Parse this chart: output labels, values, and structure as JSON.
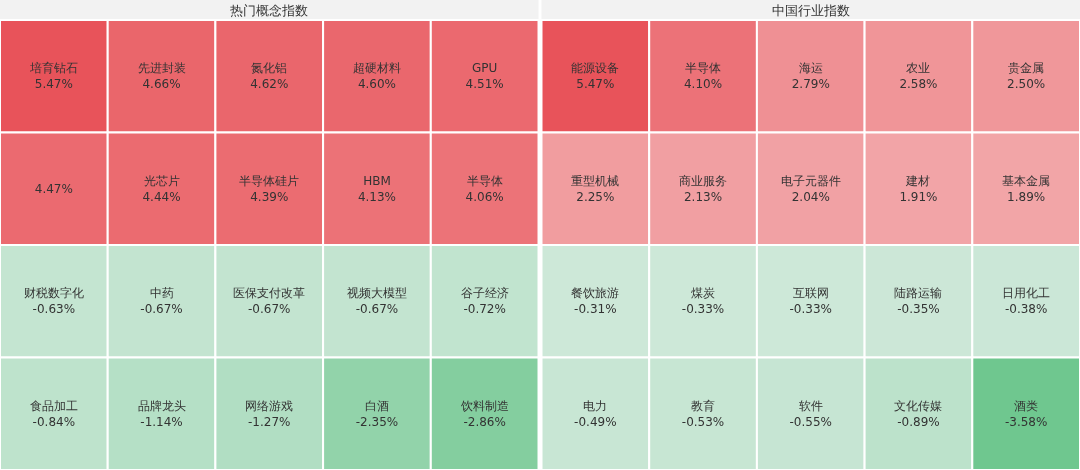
{
  "chart_data": [
    {
      "type": "other",
      "title": "热门概念指数",
      "categories": [
        "培育钻石",
        "先进封装",
        "氮化铝",
        "超硬材料",
        "GPU",
        null,
        "光芯片",
        "半导体硅片",
        "HBM",
        "半导体",
        "财税数字化",
        "中药",
        "医保支付改革",
        "视频大模型",
        "谷子经济",
        "食品加工",
        "品牌龙头",
        "网络游戏",
        "白酒",
        "饮料制造"
      ],
      "values": [
        5.47,
        4.66,
        4.62,
        4.6,
        4.51,
        4.47,
        4.44,
        4.39,
        4.13,
        4.06,
        -0.63,
        -0.67,
        -0.67,
        -0.67,
        -0.72,
        -0.84,
        -1.14,
        -1.27,
        -2.35,
        -2.86
      ],
      "value_labels": [
        "5.47%",
        "4.66%",
        "4.62%",
        "4.60%",
        "4.51%",
        "4.47%",
        "4.44%",
        "4.39%",
        "4.13%",
        "4.06%",
        "-0.63%",
        "-0.67%",
        "-0.67%",
        "-0.67%",
        "-0.72%",
        "-0.84%",
        "-1.14%",
        "-1.27%",
        "-2.35%",
        "-2.86%"
      ]
    },
    {
      "type": "other",
      "title": "中国行业指数",
      "categories": [
        "能源设备",
        "半导体",
        "海运",
        "农业",
        "贵金属",
        "重型机械",
        "商业服务",
        "电子元器件",
        "建材",
        "基本金属",
        "餐饮旅游",
        "煤炭",
        "互联网",
        "陆路运输",
        "日用化工",
        "电力",
        "教育",
        "软件",
        "文化传媒",
        "酒类"
      ],
      "values": [
        5.47,
        4.1,
        2.79,
        2.58,
        2.5,
        2.25,
        2.13,
        2.04,
        1.91,
        1.89,
        -0.31,
        -0.33,
        -0.33,
        -0.35,
        -0.38,
        -0.49,
        -0.53,
        -0.55,
        -0.89,
        -3.58
      ],
      "value_labels": [
        "5.47%",
        "4.10%",
        "2.79%",
        "2.58%",
        "2.50%",
        "2.25%",
        "2.13%",
        "2.04%",
        "1.91%",
        "1.89%",
        "-0.31%",
        "-0.33%",
        "-0.33%",
        "-0.35%",
        "-0.38%",
        "-0.49%",
        "-0.53%",
        "-0.55%",
        "-0.89%",
        "-3.58%"
      ]
    }
  ]
}
